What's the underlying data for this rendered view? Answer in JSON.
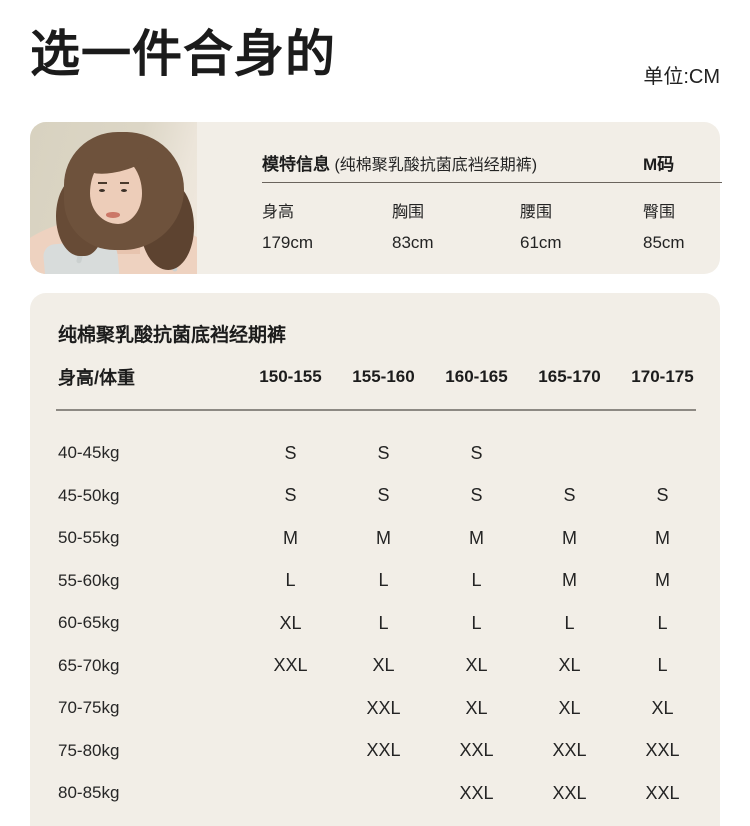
{
  "page": {
    "title": "选一件合身的",
    "unit_label": "单位:CM"
  },
  "colors": {
    "card_background": "#f2eee7",
    "text": "#1e1e1e"
  },
  "model_card": {
    "heading": "模特信息",
    "heading_note": "(纯棉聚乳酸抗菌底裆经期裤)",
    "size_badge": "M码",
    "metrics": [
      {
        "label": "身高",
        "value": "179cm"
      },
      {
        "label": "胸围",
        "value": "83cm"
      },
      {
        "label": "腰围",
        "value": "61cm"
      },
      {
        "label": "臀围",
        "value": "85cm"
      }
    ]
  },
  "size_table": {
    "title": "纯棉聚乳酸抗菌底裆经期裤",
    "corner_header": "身高/体重",
    "columns": [
      "150-155",
      "155-160",
      "160-165",
      "165-170",
      "170-175"
    ],
    "rows": [
      {
        "label": "40-45kg",
        "cells": [
          "S",
          "S",
          "S",
          "",
          ""
        ]
      },
      {
        "label": "45-50kg",
        "cells": [
          "S",
          "S",
          "S",
          "S",
          "S"
        ]
      },
      {
        "label": "50-55kg",
        "cells": [
          "M",
          "M",
          "M",
          "M",
          "M"
        ]
      },
      {
        "label": "55-60kg",
        "cells": [
          "L",
          "L",
          "L",
          "M",
          "M"
        ]
      },
      {
        "label": "60-65kg",
        "cells": [
          "XL",
          "L",
          "L",
          "L",
          "L"
        ]
      },
      {
        "label": "65-70kg",
        "cells": [
          "XXL",
          "XL",
          "XL",
          "XL",
          "L"
        ]
      },
      {
        "label": "70-75kg",
        "cells": [
          "",
          "XXL",
          "XL",
          "XL",
          "XL"
        ]
      },
      {
        "label": "75-80kg",
        "cells": [
          "",
          "XXL",
          "XXL",
          "XXL",
          "XXL"
        ]
      },
      {
        "label": "80-85kg",
        "cells": [
          "",
          "",
          "XXL",
          "XXL",
          "XXL"
        ]
      }
    ]
  }
}
